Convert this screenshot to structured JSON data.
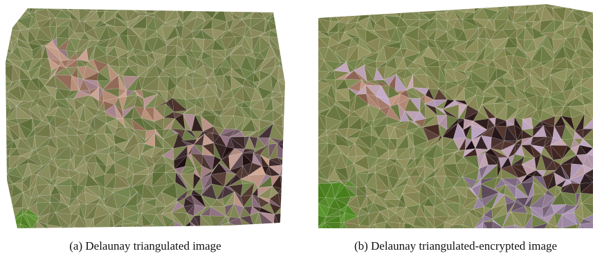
{
  "figure": {
    "panel_a": {
      "caption": "(a) Delaunay triangulated image",
      "colors": {
        "grass_light": "#8b8a5c",
        "grass_mid": "#7e8452",
        "grass_dark": "#6a7a45",
        "green_bright": "#5a8a2c",
        "earth_pink": "#c9a08a",
        "earth_brown": "#8a6450",
        "shadow": "#2a1a1c",
        "mauve": "#9a7c8c"
      }
    },
    "panel_b": {
      "caption": "(b) Delaunay triangulated-encrypted image",
      "colors": {
        "grass_light": "#8e8c5a",
        "grass_mid": "#7f8650",
        "grass_dark": "#6c7c44",
        "green_bright": "#4f8a22",
        "earth_pink": "#c49a86",
        "earth_brown": "#7a5242",
        "shadow": "#24161a",
        "lilac": "#b7a0c0"
      }
    }
  }
}
